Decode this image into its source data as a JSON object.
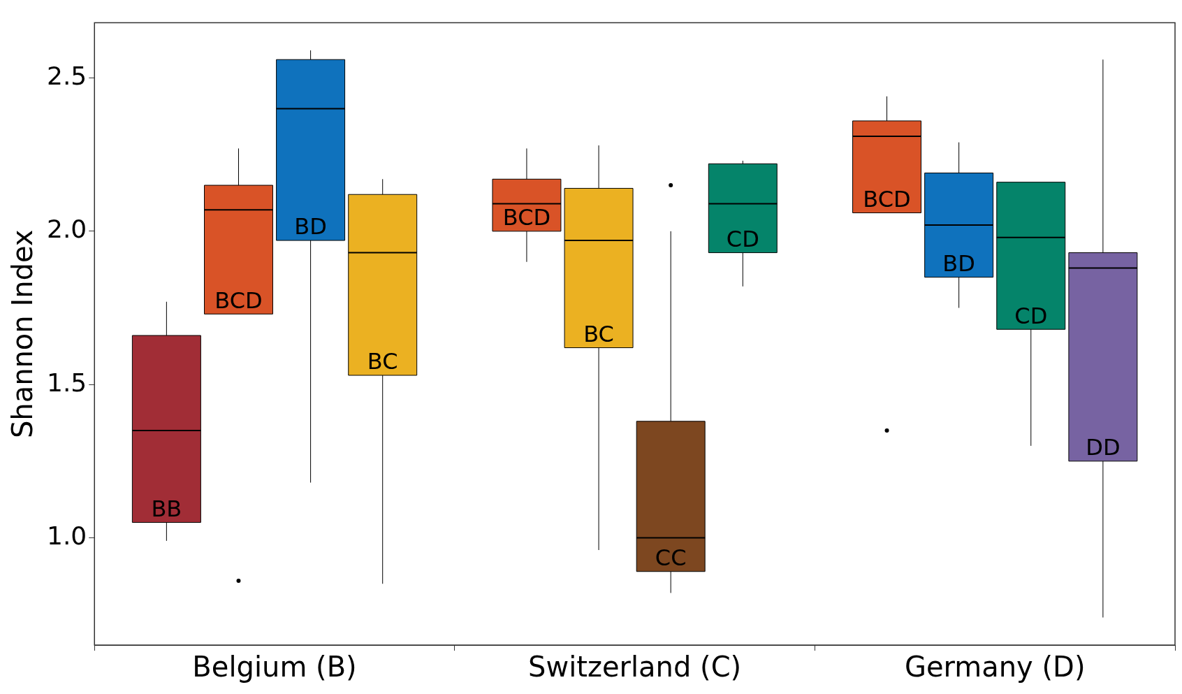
{
  "chart_data": {
    "type": "box",
    "ylabel": "Shannon Index",
    "categories": [
      "Belgium (B)",
      "Switzerland (C)",
      "Germany (D)"
    ],
    "ylim": [
      0.65,
      2.68
    ],
    "yticks": [
      {
        "value": 1.0,
        "label": "1.0"
      },
      {
        "value": 1.5,
        "label": "1.5"
      },
      {
        "value": 2.0,
        "label": "2.0"
      },
      2.5
    ],
    "grid": false,
    "legend": false,
    "series": [
      {
        "colors": [
          "#a12d36",
          "#d95327",
          "#d95327"
        ],
        "boxes": [
          {
            "low": 0.99,
            "q1": 1.05,
            "median": 1.35,
            "q3": 1.66,
            "high": 1.77
          },
          {
            "low": 1.9,
            "q1": 2.0,
            "median": 2.09,
            "q3": 2.17,
            "high": 2.27
          },
          {
            "low": 2.06,
            "q1": 2.06,
            "median": 2.31,
            "q3": 2.36,
            "high": 2.44,
            "outliers": [
              1.35
            ]
          }
        ]
      },
      {
        "colors": [
          "#d95327",
          "#ebb122",
          "#0f72bd"
        ],
        "boxes": [
          {
            "low": 1.73,
            "q1": 1.73,
            "median": 2.07,
            "q3": 2.15,
            "high": 2.27,
            "outliers": [
              0.86
            ]
          },
          {
            "low": 0.96,
            "q1": 1.62,
            "median": 1.97,
            "q3": 2.14,
            "high": 2.28
          },
          {
            "low": 1.75,
            "q1": 1.85,
            "median": 2.02,
            "q3": 2.19,
            "high": 2.29
          }
        ]
      },
      {
        "colors": [
          "#0f72bd",
          "#7d4720",
          "#05846a"
        ],
        "boxes": [
          {
            "low": 1.18,
            "q1": 1.97,
            "median": 2.4,
            "q3": 2.56,
            "high": 2.59
          },
          {
            "low": 0.82,
            "q1": 0.89,
            "median": 1.0,
            "q3": 1.38,
            "high": 2.0,
            "outliers": [
              2.15
            ]
          },
          {
            "low": 1.3,
            "q1": 1.68,
            "median": 1.98,
            "q3": 2.16,
            "high": 2.16
          }
        ]
      },
      {
        "colors": [
          "#ebb122",
          "#05846a",
          "#7763a2"
        ],
        "boxes": [
          {
            "low": 0.85,
            "q1": 1.53,
            "median": 1.93,
            "q3": 2.12,
            "high": 2.17
          },
          {
            "low": 1.82,
            "q1": 1.93,
            "median": 2.09,
            "q3": 2.22,
            "high": 2.23
          },
          {
            "low": 0.74,
            "q1": 1.25,
            "median": 1.88,
            "q3": 1.93,
            "high": 2.56
          }
        ]
      }
    ],
    "annotations": [
      "BB",
      "BCD",
      "BD",
      "BC",
      "BCD",
      "BC",
      "CC",
      "CD",
      "BCD",
      "BD",
      "CD",
      "DD"
    ]
  }
}
